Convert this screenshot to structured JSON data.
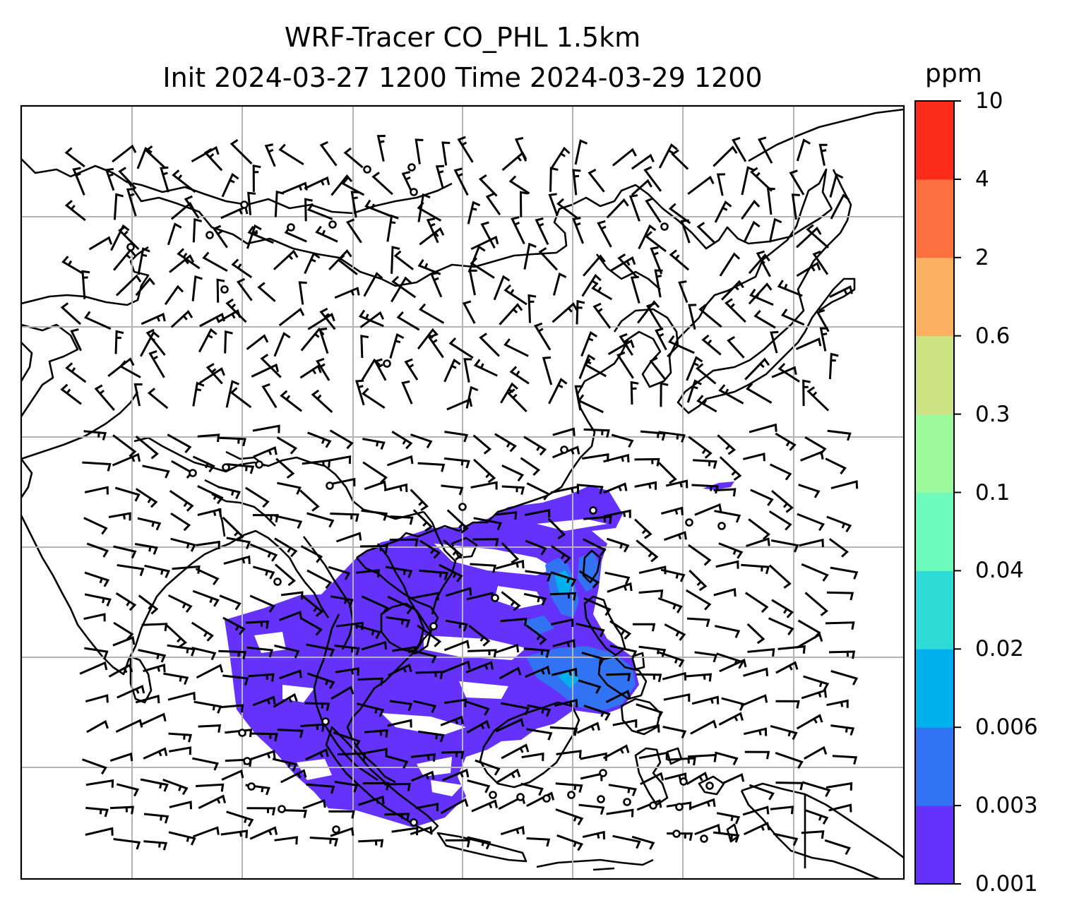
{
  "title": {
    "line1": "WRF-Tracer CO_PHL 1.5km",
    "line2": "Init 2024-03-27 1200 Time 2024-03-29 1200"
  },
  "colorbar": {
    "unit": "ppm",
    "levels": [
      "0.001",
      "0.003",
      "0.006",
      "0.02",
      "0.04",
      "0.1",
      "0.3",
      "0.6",
      "2",
      "4",
      "10"
    ],
    "colors": [
      "#6432fa",
      "#3273f3",
      "#00b0ed",
      "#2edbd7",
      "#6cfbbc",
      "#9cf99c",
      "#cde484",
      "#fbb161",
      "#fd7040",
      "#fa2b18"
    ]
  },
  "map": {
    "background": "#ffffff",
    "coastline_color": "#000000",
    "gridline_color": "#b4b4b4",
    "tracer_main_color": "#6432fa",
    "tracer_secondary_color": "#3273f3",
    "tracer_peak_color": "#00b0ed"
  }
}
